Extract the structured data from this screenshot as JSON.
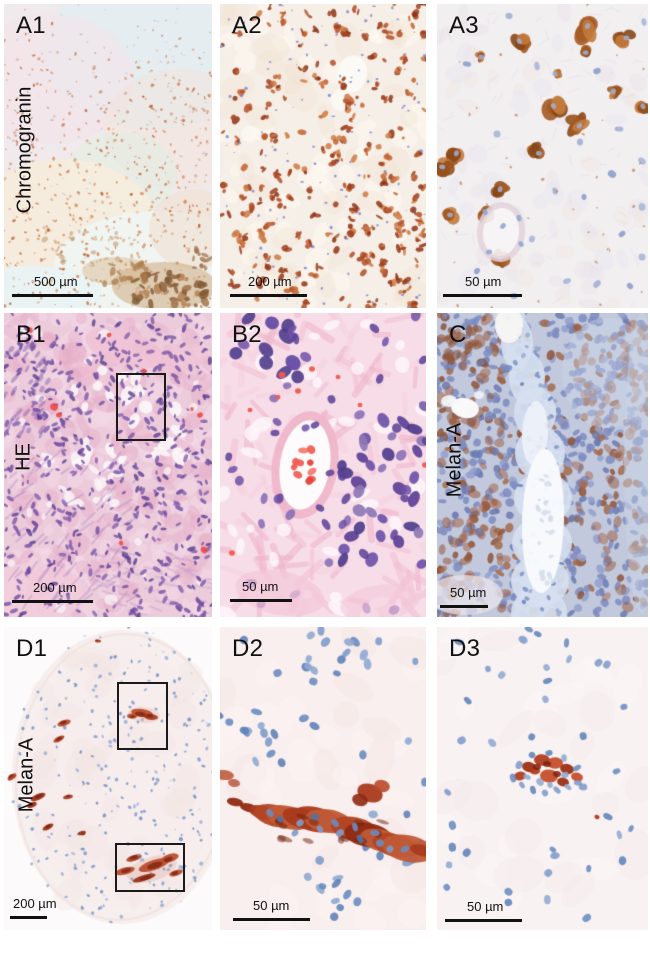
{
  "palette": {
    "panel_text": "#111111",
    "dab_brown": "#a55a22",
    "dab_brown_dark": "#8a4718",
    "dab_orange": "#cd7a44",
    "melan_red": "#a93a1d",
    "melan_red_dark": "#7e2410",
    "hematoxylin_blue": "#7e9bca",
    "nucleus_blue_gray": "#9fb0d4",
    "he_pink": "#eccbdb",
    "he_purple_nucleus": "#6f4da2",
    "red_blood": "#ee4848",
    "c_cell_blue": "#7c8bbf",
    "c_cell_brown": "#a36a4b"
  },
  "panels": {
    "a1": {
      "label": "A1",
      "stain": "Chromogranin",
      "scale_text": "500 µm"
    },
    "a2": {
      "label": "A2",
      "scale_text": "200 µm"
    },
    "a3": {
      "label": "A3",
      "scale_text": "50 µm"
    },
    "b1": {
      "label": "B1",
      "stain": "HE",
      "scale_text": "200 µm"
    },
    "b2": {
      "label": "B2",
      "scale_text": "50 µm"
    },
    "c": {
      "label": "C",
      "stain": "Melan-A",
      "scale_text": "50 µm"
    },
    "d1": {
      "label": "D1",
      "stain": "Melan-A",
      "scale_text": "200 µm"
    },
    "d2": {
      "label": "D2",
      "scale_text": "50 µm"
    },
    "d3": {
      "label": "D3",
      "scale_text": "50 µm"
    }
  }
}
